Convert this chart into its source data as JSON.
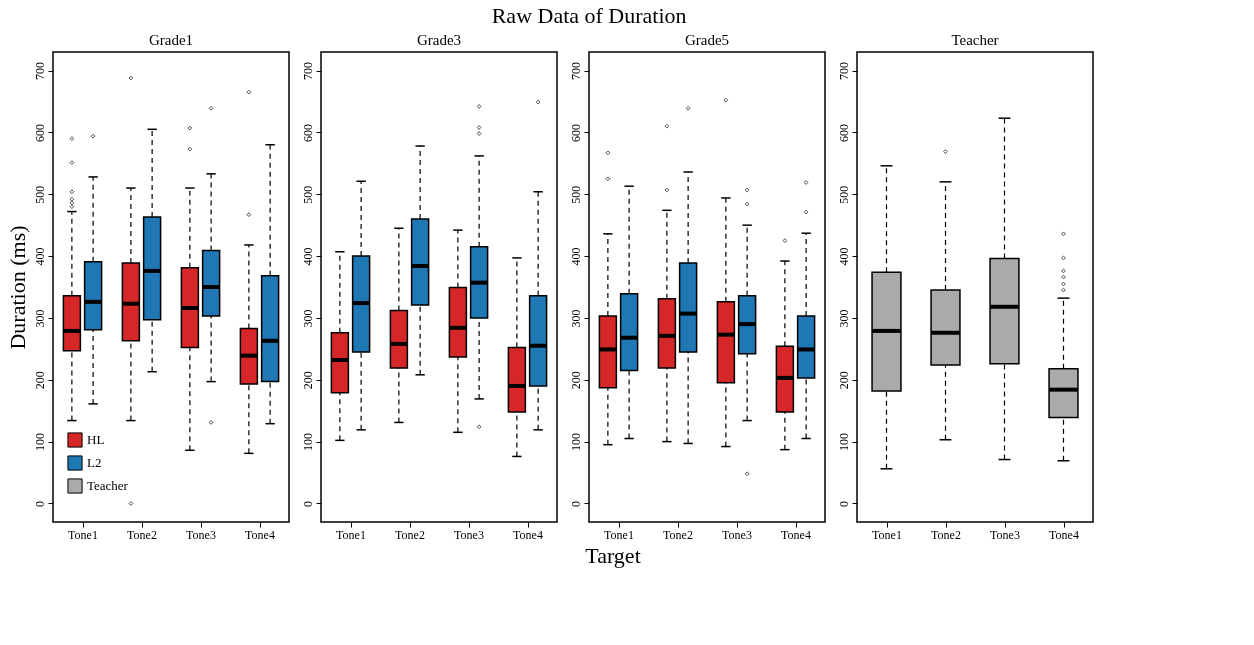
{
  "chart_data": [
    {
      "type": "box",
      "title": "Grade1",
      "annotations": [
        "Raw Data of Duration",
        "Target"
      ],
      "ylabel": "Duration (ms)",
      "legend": "bottom left",
      "categories": [
        "Tone1",
        "Tone2",
        "Tone3",
        "Tone4"
      ],
      "ylim": [
        -30,
        730
      ],
      "yticks": [
        0,
        100,
        200,
        300,
        400,
        500,
        600,
        700
      ],
      "grid": false,
      "series": [
        {
          "name": "HL",
          "color": "#d62728",
          "boxes": [
            {
              "low": 134,
              "q1": 247,
              "median": 279,
              "q3": 336,
              "high": 472,
              "outliers": [
                590,
                551,
                504,
                492,
                486,
                480
              ]
            },
            {
              "low": 134,
              "q1": 263,
              "median": 323,
              "q3": 389,
              "high": 510,
              "outliers": [
                688,
                0
              ]
            },
            {
              "low": 86,
              "q1": 252,
              "median": 316,
              "q3": 381,
              "high": 510,
              "outliers": [
                607,
                573
              ]
            },
            {
              "low": 81,
              "q1": 193,
              "median": 239,
              "q3": 283,
              "high": 418,
              "outliers": [
                665,
                467
              ]
            }
          ]
        },
        {
          "name": "L2",
          "color": "#1f77b4",
          "boxes": [
            {
              "low": 161,
              "q1": 281,
              "median": 326,
              "q3": 391,
              "high": 528,
              "outliers": [
                594
              ]
            },
            {
              "low": 213,
              "q1": 297,
              "median": 376,
              "q3": 463,
              "high": 605
            },
            {
              "low": 197,
              "q1": 303,
              "median": 350,
              "q3": 409,
              "high": 533,
              "outliers": [
                639,
                131
              ]
            },
            {
              "low": 129,
              "q1": 197,
              "median": 263,
              "q3": 368,
              "high": 580
            }
          ]
        }
      ]
    },
    {
      "type": "box",
      "title": "Grade3",
      "categories": [
        "Tone1",
        "Tone2",
        "Tone3",
        "Tone4"
      ],
      "ylim": [
        -30,
        730
      ],
      "yticks": [
        0,
        100,
        200,
        300,
        400,
        500,
        600,
        700
      ],
      "grid": false,
      "series": [
        {
          "name": "HL",
          "color": "#d62728",
          "boxes": [
            {
              "low": 102,
              "q1": 179,
              "median": 232,
              "q3": 276,
              "high": 407
            },
            {
              "low": 131,
              "q1": 219,
              "median": 258,
              "q3": 312,
              "high": 445
            },
            {
              "low": 115,
              "q1": 237,
              "median": 284,
              "q3": 349,
              "high": 442
            },
            {
              "low": 76,
              "q1": 148,
              "median": 190,
              "q3": 252,
              "high": 397
            }
          ]
        },
        {
          "name": "L2",
          "color": "#1f77b4",
          "boxes": [
            {
              "low": 119,
              "q1": 245,
              "median": 324,
              "q3": 400,
              "high": 521
            },
            {
              "low": 208,
              "q1": 321,
              "median": 384,
              "q3": 460,
              "high": 578
            },
            {
              "low": 169,
              "q1": 300,
              "median": 357,
              "q3": 415,
              "high": 562,
              "outliers": [
                642,
                608,
                598,
                124
              ]
            },
            {
              "low": 119,
              "q1": 190,
              "median": 255,
              "q3": 336,
              "high": 504,
              "outliers": [
                649
              ]
            }
          ]
        }
      ]
    },
    {
      "type": "box",
      "title": "Grade5",
      "categories": [
        "Tone1",
        "Tone2",
        "Tone3",
        "Tone4"
      ],
      "ylim": [
        -30,
        730
      ],
      "yticks": [
        0,
        100,
        200,
        300,
        400,
        500,
        600,
        700
      ],
      "grid": false,
      "series": [
        {
          "name": "HL",
          "color": "#d62728",
          "boxes": [
            {
              "low": 95,
              "q1": 187,
              "median": 249,
              "q3": 303,
              "high": 436,
              "outliers": [
                567,
                525
              ]
            },
            {
              "low": 100,
              "q1": 219,
              "median": 271,
              "q3": 331,
              "high": 474,
              "outliers": [
                610,
                507
              ]
            },
            {
              "low": 92,
              "q1": 195,
              "median": 273,
              "q3": 326,
              "high": 494,
              "outliers": [
                652
              ]
            },
            {
              "low": 87,
              "q1": 148,
              "median": 203,
              "q3": 254,
              "high": 392,
              "outliers": [
                425
              ]
            }
          ]
        },
        {
          "name": "L2",
          "color": "#1f77b4",
          "boxes": [
            {
              "low": 105,
              "q1": 215,
              "median": 268,
              "q3": 339,
              "high": 513
            },
            {
              "low": 97,
              "q1": 245,
              "median": 307,
              "q3": 389,
              "high": 536,
              "outliers": [
                639
              ]
            },
            {
              "low": 134,
              "q1": 242,
              "median": 290,
              "q3": 336,
              "high": 450,
              "outliers": [
                507,
                484,
                48
              ]
            },
            {
              "low": 105,
              "q1": 203,
              "median": 249,
              "q3": 303,
              "high": 437,
              "outliers": [
                519,
                471
              ]
            }
          ]
        }
      ]
    },
    {
      "type": "box",
      "title": "Teacher",
      "categories": [
        "Tone1",
        "Tone2",
        "Tone3",
        "Tone4"
      ],
      "ylim": [
        -30,
        730
      ],
      "yticks": [
        0,
        100,
        200,
        300,
        400,
        500,
        600,
        700
      ],
      "grid": false,
      "series": [
        {
          "name": "Teacher",
          "color": "#aaaaaa",
          "boxes": [
            {
              "low": 56,
              "q1": 182,
              "median": 279,
              "q3": 374,
              "high": 546
            },
            {
              "low": 103,
              "q1": 224,
              "median": 276,
              "q3": 345,
              "high": 520,
              "outliers": [
                569
              ]
            },
            {
              "low": 71,
              "q1": 226,
              "median": 318,
              "q3": 396,
              "high": 623
            },
            {
              "low": 69,
              "q1": 139,
              "median": 184,
              "q3": 218,
              "high": 332,
              "outliers": [
                436,
                397,
                376,
                366,
                355,
                345
              ]
            }
          ]
        }
      ]
    }
  ]
}
